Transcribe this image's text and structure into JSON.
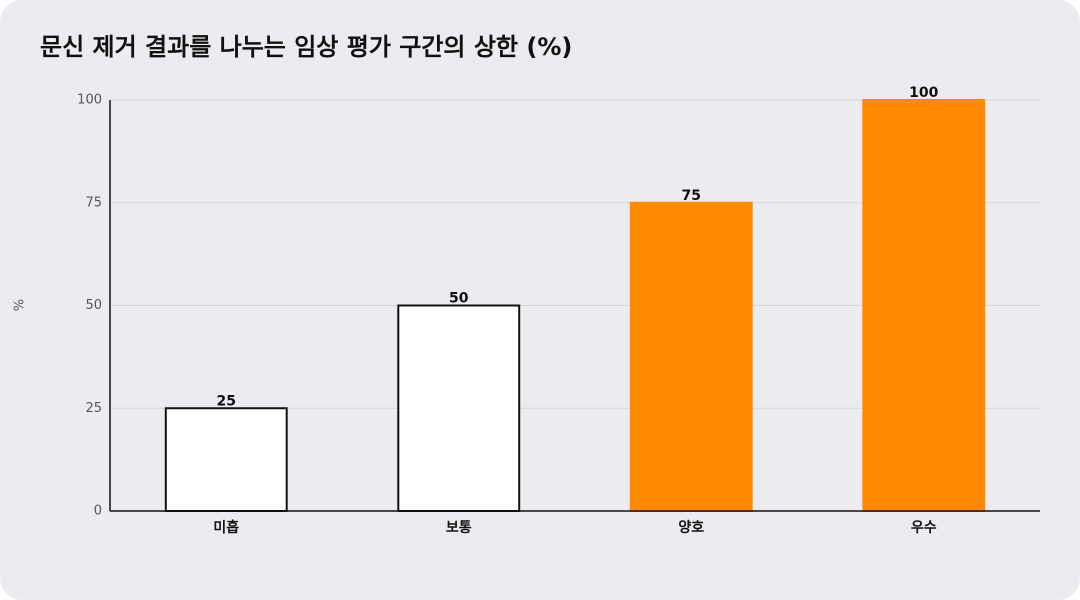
{
  "chart_data": {
    "type": "bar",
    "title": "문신 제거 결과를 나누는 임상 평가 구간의 상한 (%)",
    "ylabel": "%",
    "categories": [
      "미흡",
      "보통",
      "양호",
      "우수"
    ],
    "values": [
      25,
      50,
      75,
      100
    ],
    "colors": [
      "#ffffff",
      "#ffffff",
      "#ff8a00",
      "#ff8a00"
    ],
    "edgecolors": [
      "#111111",
      "#111111",
      "#ff8a00",
      "#ff8a00"
    ],
    "ylim": [
      0,
      100
    ],
    "yticks": [
      0,
      25,
      50,
      75,
      100
    ],
    "grid": true
  }
}
